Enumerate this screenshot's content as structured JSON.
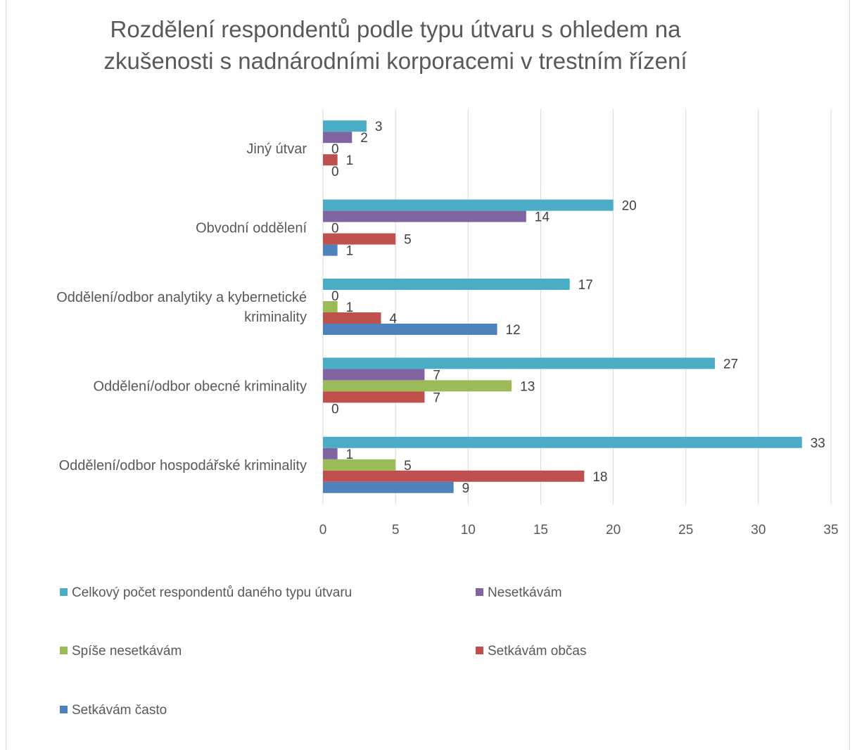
{
  "chart_data": {
    "type": "bar",
    "orientation": "horizontal",
    "title": "Rozdělení respondentů podle typu útvaru s ohledem na zkušenosti s nadnárodními korporacemi v trestním řízení",
    "title_lines": [
      "Rozdělení respondentů podle typu útvaru s ohledem na",
      "zkušenosti s nadnárodními korporacemi v trestním řízení"
    ],
    "categories": [
      "Oddělení/odbor hospodářské kriminality",
      "Oddělení/odbor obecné kriminality",
      "Oddělení/odbor analytiky a kybernetické kriminality",
      "Obvodní oddělení",
      "Jiný útvar"
    ],
    "category_label_lines": [
      [
        "Oddělení/odbor hospodářské kriminality"
      ],
      [
        "Oddělení/odbor obecné kriminality"
      ],
      [
        "Oddělení/odbor analytiky a kybernetické",
        "kriminality"
      ],
      [
        "Obvodní oddělení"
      ],
      [
        "Jiný útvar"
      ]
    ],
    "series": [
      {
        "name": "Setkávám často",
        "color": "#4f81bd",
        "values": [
          9,
          0,
          12,
          1,
          0
        ]
      },
      {
        "name": "Setkávám občas",
        "color": "#c0504d",
        "values": [
          18,
          7,
          4,
          5,
          1
        ]
      },
      {
        "name": "Spíše nesetkávám",
        "color": "#9bbb59",
        "values": [
          5,
          13,
          1,
          0,
          0
        ]
      },
      {
        "name": "Nesetkávám",
        "color": "#8064a2",
        "values": [
          1,
          7,
          0,
          14,
          2
        ]
      },
      {
        "name": "Celkový počet respondentů daného typu útvaru",
        "color": "#4bacc6",
        "values": [
          33,
          27,
          17,
          20,
          3
        ]
      }
    ],
    "xlim": [
      0,
      35
    ],
    "xticks": [
      0,
      5,
      10,
      15,
      20,
      25,
      30,
      35
    ],
    "xtick_labels": [
      "0",
      "5",
      "10",
      "15",
      "20",
      "25",
      "30",
      "35"
    ],
    "grid": "vertical",
    "legend_position": "bottom",
    "legend_order": [
      "Celkový počet respondentů daného typu útvaru",
      "Nesetkávám",
      "Spíše nesetkávám",
      "Setkávám občas",
      "Setkávám často"
    ],
    "data_labels": true
  }
}
